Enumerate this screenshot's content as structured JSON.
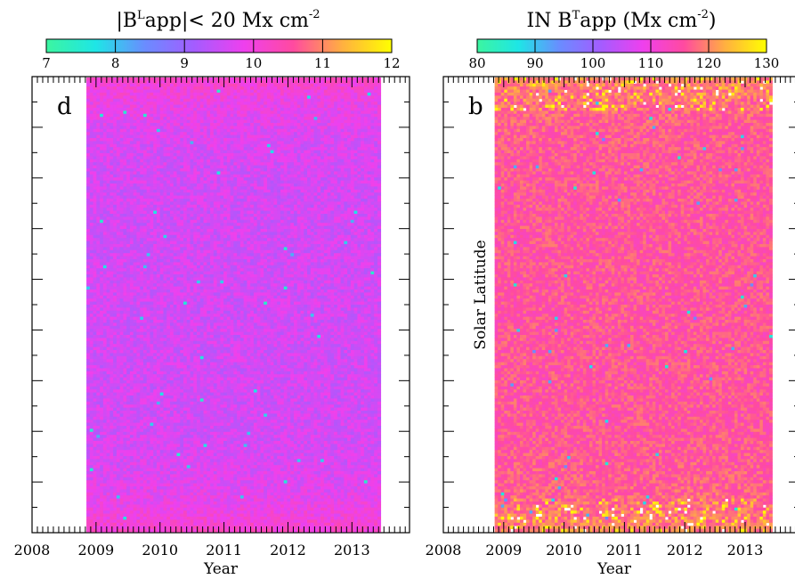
{
  "chart_data": [
    {
      "type": "heatmap",
      "panel_label": "d",
      "title": {
        "prefix": "|B",
        "sup": "L",
        "suffix": "app|< 20 Mx cm",
        "unit_sup": "-2"
      },
      "colorbar": {
        "range": [
          7,
          12
        ],
        "tick_labels": [
          "7",
          "8",
          "9",
          "10",
          "11",
          "12"
        ],
        "colors": [
          "#3cf5a0",
          "#1ee6e6",
          "#6a8cff",
          "#a45cff",
          "#ee40ee",
          "#ff4aa0",
          "#ffb040",
          "#ffff00"
        ]
      },
      "x_tick_labels": [
        "2008",
        "2009",
        "2010",
        "2011",
        "2012",
        "2013"
      ],
      "x_range": [
        2008.0,
        2013.9
      ],
      "data_x_range": [
        2008.85,
        2013.45
      ],
      "xlabel": "Year",
      "ylabel": "",
      "value_summary": "mostly 9-10.5 in middle latitudes, rising to ~10.5-11 near top and bottom"
    },
    {
      "type": "heatmap",
      "panel_label": "b",
      "title": {
        "prefix": "IN B",
        "sup": "T",
        "suffix": "app (Mx cm",
        "unit_sup": "-2",
        "close": ")"
      },
      "colorbar": {
        "range": [
          80,
          130
        ],
        "tick_labels": [
          "80",
          "90",
          "100",
          "110",
          "120",
          "130"
        ],
        "colors": [
          "#3cf5a0",
          "#1ee6e6",
          "#6a8cff",
          "#a45cff",
          "#ee40ee",
          "#ff4aa0",
          "#ffb040",
          "#ffff00"
        ]
      },
      "x_tick_labels": [
        "2008",
        "2009",
        "2010",
        "2011",
        "2012",
        "2013"
      ],
      "x_range": [
        2008.0,
        2013.9
      ],
      "data_x_range": [
        2008.85,
        2013.45
      ],
      "xlabel": "Year",
      "ylabel": "Solar Latitude",
      "value_summary": "mostly 110-120 in middle latitudes, with scattered 120-130 and gaps near top and bottom"
    }
  ]
}
